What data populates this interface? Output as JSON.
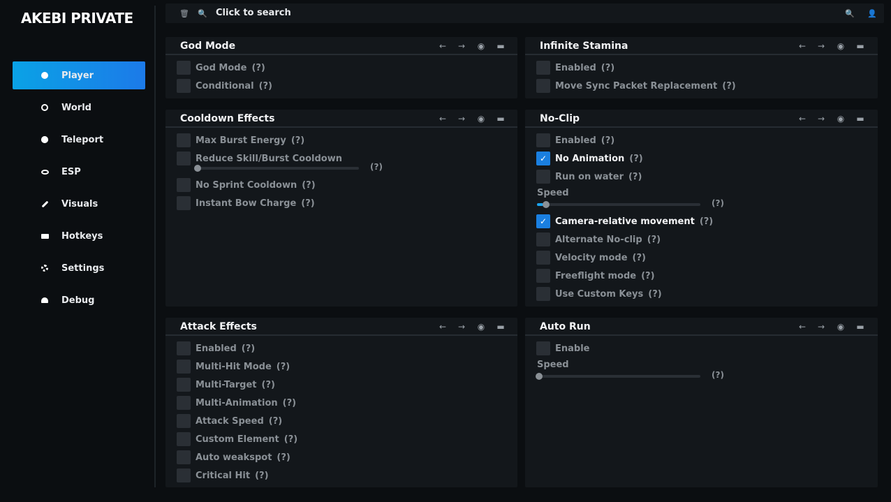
{
  "app": {
    "title": "AKEBI PRIVATE"
  },
  "sidebar": {
    "items": [
      {
        "label": "Player",
        "icon": "info-icon",
        "active": true
      },
      {
        "label": "World",
        "icon": "globe-icon"
      },
      {
        "label": "Teleport",
        "icon": "compass-icon"
      },
      {
        "label": "ESP",
        "icon": "eye-icon"
      },
      {
        "label": "Visuals",
        "icon": "brush-icon"
      },
      {
        "label": "Hotkeys",
        "icon": "keyboard-icon"
      },
      {
        "label": "Settings",
        "icon": "gear-icon"
      },
      {
        "label": "Debug",
        "icon": "bug-icon"
      }
    ]
  },
  "search": {
    "placeholder": "Click to search"
  },
  "help": "(?)",
  "panels": {
    "god_mode": {
      "title": "God Mode",
      "items": [
        {
          "label": "God Mode",
          "checked": false
        },
        {
          "label": "Conditional",
          "checked": false
        }
      ]
    },
    "infinite_stamina": {
      "title": "Infinite Stamina",
      "items": [
        {
          "label": "Enabled",
          "checked": false
        },
        {
          "label": "Move Sync Packet Replacement",
          "checked": false
        }
      ]
    },
    "cooldown": {
      "title": "Cooldown Effects",
      "items": [
        {
          "label": "Max Burst Energy",
          "checked": false
        },
        {
          "label": "Reduce Skill/Burst Cooldown",
          "checked": false,
          "slider": 0.0
        },
        {
          "label": "No Sprint Cooldown",
          "checked": false
        },
        {
          "label": "Instant Bow Charge",
          "checked": false
        }
      ]
    },
    "noclip": {
      "title": "No-Clip",
      "items": [
        {
          "label": "Enabled",
          "checked": false
        },
        {
          "label": "No Animation",
          "checked": true
        },
        {
          "label": "Run on water",
          "checked": false
        },
        {
          "label": "Camera-relative movement",
          "checked": true
        },
        {
          "label": "Alternate No-clip",
          "checked": false
        },
        {
          "label": "Velocity mode",
          "checked": false
        },
        {
          "label": "Freeflight mode",
          "checked": false
        },
        {
          "label": "Use Custom Keys",
          "checked": false
        }
      ],
      "speed_label": "Speed",
      "speed_value": 0.04
    },
    "attack": {
      "title": "Attack Effects",
      "items": [
        {
          "label": "Enabled",
          "checked": false
        },
        {
          "label": "Multi-Hit Mode",
          "checked": false
        },
        {
          "label": "Multi-Target",
          "checked": false
        },
        {
          "label": "Multi-Animation",
          "checked": false
        },
        {
          "label": "Attack Speed",
          "checked": false
        },
        {
          "label": "Custom Element",
          "checked": false
        },
        {
          "label": "Auto weakspot",
          "checked": false
        },
        {
          "label": "Critical Hit",
          "checked": false
        }
      ]
    },
    "auto_run": {
      "title": "Auto Run",
      "items": [
        {
          "label": "Enable",
          "checked": false
        }
      ],
      "speed_label": "Speed",
      "speed_value": 0.0
    }
  },
  "colors": {
    "accent": "#1a7fe0",
    "accent_gradient": "#0aa2e6",
    "panel_bg": "#13171b",
    "page_bg": "#0b0e11"
  }
}
